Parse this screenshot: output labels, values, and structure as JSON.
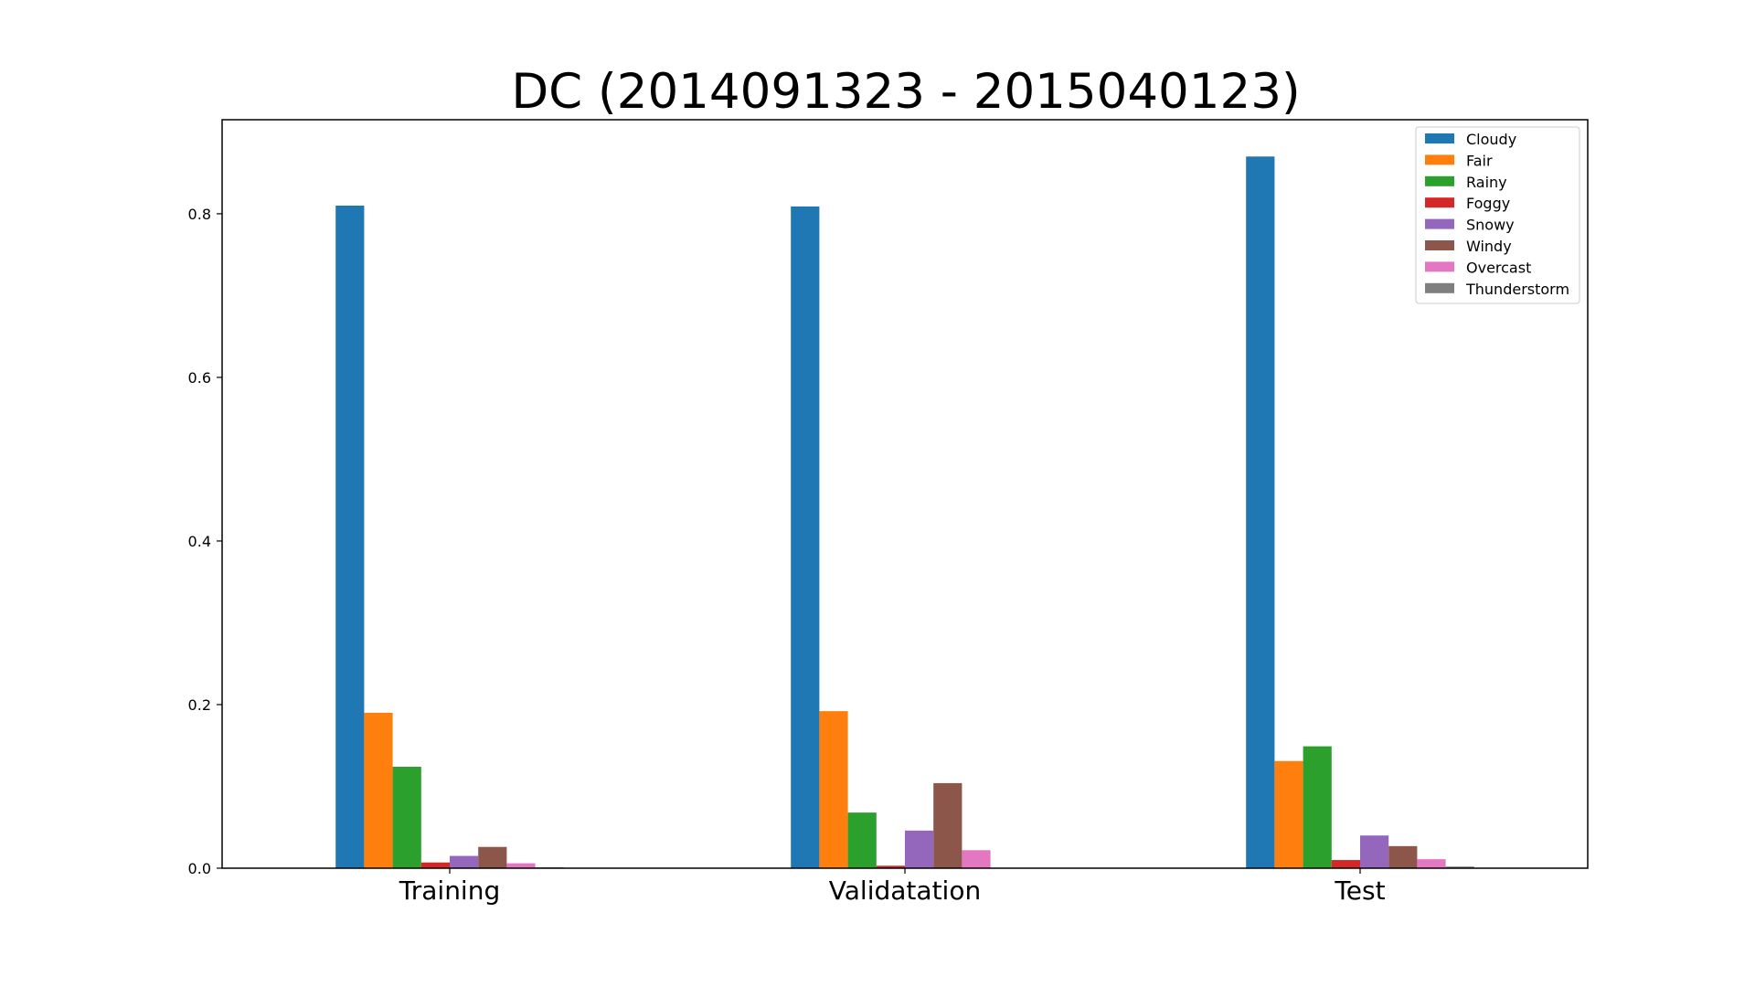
{
  "chart_data": {
    "type": "bar",
    "title": "DC (2014091323 - 2015040123)",
    "xlabel": "",
    "ylabel": "",
    "categories": [
      "Training",
      "Validatation",
      "Test"
    ],
    "ylim": [
      0,
      0.915
    ],
    "yticks": [
      0.0,
      0.2,
      0.4,
      0.6,
      0.8
    ],
    "ytick_labels": [
      "0.0",
      "0.2",
      "0.4",
      "0.6",
      "0.8"
    ],
    "grid": false,
    "legend_position": "top-right",
    "series": [
      {
        "name": "Cloudy",
        "color": "#1f77b4",
        "values": [
          0.81,
          0.809,
          0.87
        ]
      },
      {
        "name": "Fair",
        "color": "#ff7f0e",
        "values": [
          0.19,
          0.192,
          0.131
        ]
      },
      {
        "name": "Rainy",
        "color": "#2ca02c",
        "values": [
          0.124,
          0.068,
          0.149
        ]
      },
      {
        "name": "Foggy",
        "color": "#d62728",
        "values": [
          0.007,
          0.003,
          0.01
        ]
      },
      {
        "name": "Snowy",
        "color": "#9467bd",
        "values": [
          0.015,
          0.046,
          0.04
        ]
      },
      {
        "name": "Windy",
        "color": "#8c564b",
        "values": [
          0.026,
          0.104,
          0.027
        ]
      },
      {
        "name": "Overcast",
        "color": "#e377c2",
        "values": [
          0.006,
          0.022,
          0.011
        ]
      },
      {
        "name": "Thunderstorm",
        "color": "#7f7f7f",
        "values": [
          0.001,
          0.0,
          0.002
        ]
      }
    ]
  }
}
